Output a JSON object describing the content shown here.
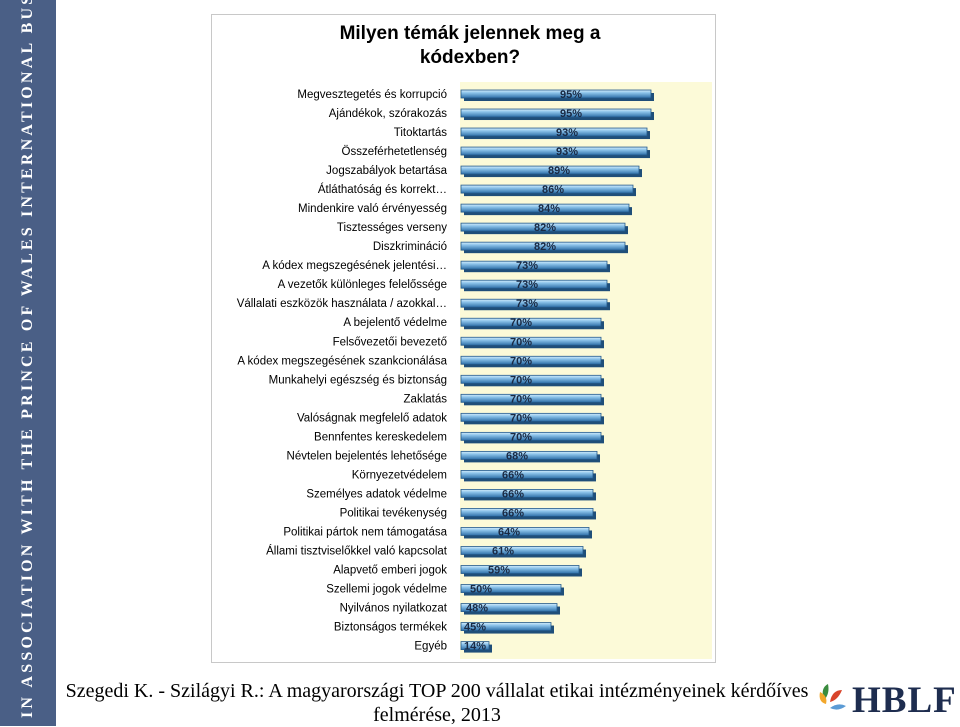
{
  "sidebar": {
    "text": "IN ASSOCIATION WITH THE PRINCE OF WALES INTERNATIONAL BUSINESS LEADERS FORUM"
  },
  "footer": {
    "caption": "Szegedi K. - Szilágyi R.: A magyarországi TOP 200 vállalat etikai intézményeinek kérdőíves felmérése, 2013"
  },
  "logo": {
    "text": "HBLF",
    "colors": [
      "#3a8c3e",
      "#f2a72b",
      "#d8442b",
      "#5b9bd5"
    ]
  },
  "colors": {
    "bar_fill": "#2e6fa8",
    "bar_highlight": "#bfe0f7",
    "plot_background": "#fcfad8",
    "sidebar": "#4a5f86"
  },
  "chart_data": {
    "type": "bar",
    "orientation": "horizontal",
    "title": "Milyen témák jelennek meg a kódexben?",
    "xlim": [
      0,
      100
    ],
    "categories": [
      "Megvesztegetés és korrupció",
      "Ajándékok, szórakozás",
      "Titoktartás",
      "Összeférhetetlenség",
      "Jogszabályok betartása",
      "Átláthatóság és korrekt…",
      "Mindenkire való érvényesség",
      "Tisztességes verseny",
      "Diszkrimináció",
      "A kódex megszegésének jelentési…",
      "A vezetők különleges felelőssége",
      "Vállalati eszközök használata / azokkal…",
      "A bejelentő védelme",
      "Felsővezetői bevezető",
      "A kódex megszegésének szankcionálása",
      "Munkahelyi egészség és biztonság",
      "Zaklatás",
      "Valóságnak megfelelő adatok",
      "Bennfentes kereskedelem",
      "Névtelen bejelentés lehetősége",
      "Környezetvédelem",
      "Személyes adatok védelme",
      "Politikai tevékenység",
      "Politikai pártok nem támogatása",
      "Állami tisztviselőkkel való kapcsolat",
      "Alapvető emberi jogok",
      "Szellemi jogok védelme",
      "Nyilvános nyilatkozat",
      "Biztonságos termékek",
      "Egyéb"
    ],
    "values": [
      95,
      95,
      93,
      93,
      89,
      86,
      84,
      82,
      82,
      73,
      73,
      73,
      70,
      70,
      70,
      70,
      70,
      70,
      70,
      68,
      66,
      66,
      66,
      64,
      61,
      59,
      50,
      48,
      45,
      14
    ],
    "data_labels": [
      "95%",
      "95%",
      "93%",
      "93%",
      "89%",
      "86%",
      "84%",
      "82%",
      "82%",
      "73%",
      "73%",
      "73%",
      "70%",
      "70%",
      "70%",
      "70%",
      "70%",
      "70%",
      "70%",
      "68%",
      "66%",
      "66%",
      "66%",
      "64%",
      "61%",
      "59%",
      "50%",
      "48%",
      "45%",
      "14%"
    ]
  }
}
